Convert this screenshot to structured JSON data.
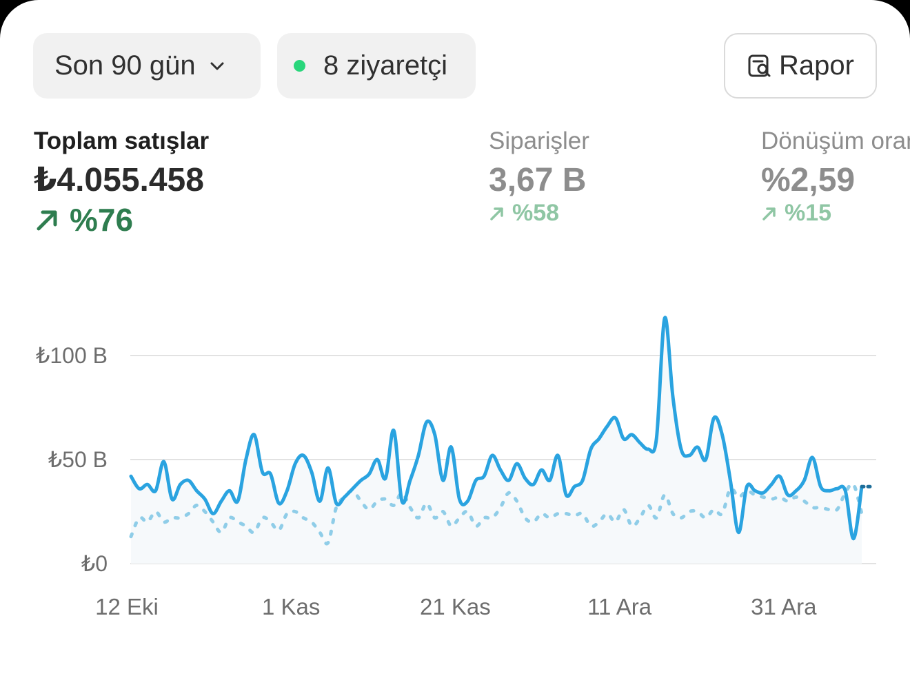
{
  "toolbar": {
    "range_label": "Son 90 gün",
    "visitors_label": "8 ziyaretçi",
    "report_label": "Rapor"
  },
  "metrics": [
    {
      "label": "Toplam satışlar",
      "value": "₺4.055.458",
      "delta": "%76"
    },
    {
      "label": "Siparişler",
      "value": "3,67 B",
      "delta": "%58"
    },
    {
      "label": "Dönüşüm oranı",
      "value": "%2,59",
      "delta": "%15"
    }
  ],
  "colors": {
    "primary_line": "#2aa3e0",
    "comparison_line": "#8fcde8",
    "positive_delta": "#2e7d4f",
    "visitor_dot": "#29d67b"
  },
  "chart_data": {
    "type": "line",
    "y_tick_labels": [
      "₺0",
      "₺50 B",
      "₺100 B"
    ],
    "y_ticks": [
      0,
      50,
      100
    ],
    "ylim": [
      0,
      120
    ],
    "x_tick_labels": [
      "12 Eki",
      "1 Kas",
      "21 Kas",
      "11 Ara",
      "31 Ara"
    ],
    "x_tick_days": [
      0,
      20,
      40,
      60,
      80
    ],
    "x_range_days": [
      0,
      89
    ],
    "grid": true,
    "series": [
      {
        "style": "solid",
        "values": [
          42,
          36,
          38,
          35,
          49,
          31,
          38,
          40,
          35,
          31,
          24,
          30,
          35,
          30,
          50,
          62,
          44,
          43,
          29,
          35,
          48,
          52,
          44,
          30,
          46,
          29,
          32,
          36,
          40,
          43,
          50,
          41,
          64,
          30,
          40,
          52,
          68,
          62,
          40,
          56,
          31,
          30,
          40,
          42,
          52,
          45,
          40,
          48,
          41,
          38,
          45,
          40,
          52,
          33,
          37,
          40,
          55,
          60,
          66,
          70,
          60,
          62,
          58,
          55,
          60,
          118,
          80,
          55,
          52,
          56,
          50,
          70,
          62,
          40,
          15,
          37,
          35,
          34,
          38,
          42,
          33,
          35,
          40,
          51,
          37,
          35,
          36,
          35,
          12,
          37
        ],
        "series_end": 37
      },
      {
        "style": "dashed",
        "values": [
          13,
          22,
          20,
          25,
          20,
          22,
          22,
          24,
          28,
          25,
          20,
          15,
          22,
          20,
          18,
          15,
          22,
          20,
          16,
          24,
          25,
          22,
          20,
          15,
          10,
          27,
          32,
          35,
          30,
          26,
          30,
          31,
          28,
          34,
          27,
          22,
          29,
          22,
          25,
          18,
          22,
          25,
          18,
          22,
          22,
          27,
          34,
          30,
          22,
          20,
          24,
          22,
          24,
          24,
          23,
          24,
          18,
          20,
          24,
          20,
          26,
          18,
          22,
          28,
          22,
          33,
          24,
          22,
          25,
          25,
          22,
          26,
          24,
          36,
          32,
          35,
          33,
          32,
          31,
          32,
          30,
          32,
          30,
          27,
          27,
          26,
          26,
          34,
          38,
          24
        ]
      }
    ]
  }
}
